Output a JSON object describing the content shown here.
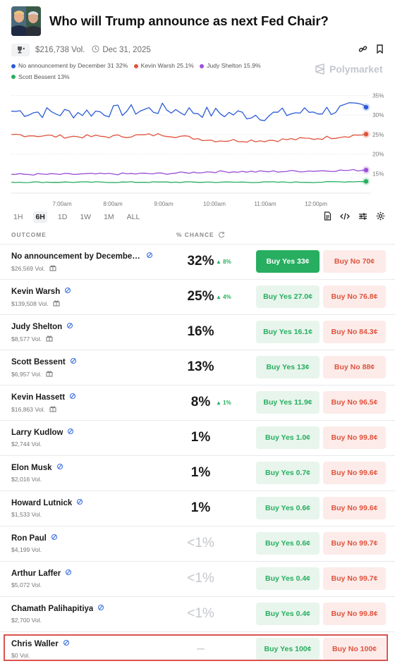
{
  "market": {
    "title": "Who will Trump announce as next Fed Chair?",
    "volume": "$216,738 Vol.",
    "end_date": "Dec 31, 2025",
    "brand": "Polymarket"
  },
  "legend": [
    {
      "label": "No announcement by December 31 32%",
      "color": "#2a5bd7"
    },
    {
      "label": "Kevin Warsh 25.1%",
      "color": "#e0533d"
    },
    {
      "label": "Judy Shelton 15.9%",
      "color": "#9b4fd6"
    },
    {
      "label": "Scott Bessent 13%",
      "color": "#27ae60"
    }
  ],
  "chart_data": {
    "type": "line",
    "x": [
      "6:30am",
      "7:00am",
      "8:00am",
      "9:00am",
      "10:00am",
      "11:00am",
      "12:00pm",
      "12:10pm"
    ],
    "x_ticks": [
      "7:00am",
      "8:00am",
      "9:00am",
      "10:00am",
      "11:00am",
      "12:00pm"
    ],
    "y_ticks": [
      "35%",
      "30%",
      "25%",
      "20%",
      "15%"
    ],
    "ylim": [
      10,
      36
    ],
    "series": [
      {
        "name": "No announcement by December 31",
        "color": "#2a5bd7",
        "values": [
          31,
          30.5,
          31,
          31.5,
          30.5,
          30,
          31,
          32
        ]
      },
      {
        "name": "Kevin Warsh",
        "color": "#e0533d",
        "values": [
          25,
          24.5,
          24.5,
          25,
          23.5,
          23.5,
          24,
          25.1
        ]
      },
      {
        "name": "Judy Shelton",
        "color": "#9b4fd6",
        "values": [
          14.8,
          14.8,
          14.9,
          15,
          15.5,
          15.5,
          15.7,
          15.9
        ]
      },
      {
        "name": "Scott Bessent",
        "color": "#27ae60",
        "values": [
          12.8,
          12.8,
          12.8,
          12.8,
          12.8,
          12.8,
          12.8,
          13
        ]
      }
    ]
  },
  "ranges": [
    "1H",
    "6H",
    "1D",
    "1W",
    "1M",
    "ALL"
  ],
  "active_range": "6H",
  "table": {
    "header_outcome": "OUTCOME",
    "header_chance": "% CHANCE",
    "rows": [
      {
        "name": "No announcement by December ...",
        "vol": "$26,569 Vol.",
        "pct": "32%",
        "chg": "▲ 8%",
        "yes": "Buy Yes 33¢",
        "no": "Buy No 70¢"
      },
      {
        "name": "Kevin Warsh",
        "vol": "$139,508 Vol.",
        "pct": "25%",
        "chg": "▲ 4%",
        "yes": "Buy Yes 27.0¢",
        "no": "Buy No 76.8¢"
      },
      {
        "name": "Judy Shelton",
        "vol": "$8,577 Vol.",
        "pct": "16%",
        "chg": "",
        "yes": "Buy Yes 16.1¢",
        "no": "Buy No 84.3¢"
      },
      {
        "name": "Scott Bessent",
        "vol": "$6,957 Vol.",
        "pct": "13%",
        "chg": "",
        "yes": "Buy Yes 13¢",
        "no": "Buy No 88¢"
      },
      {
        "name": "Kevin Hassett",
        "vol": "$16,863 Vol.",
        "pct": "8%",
        "chg": "▲ 1%",
        "yes": "Buy Yes 11.9¢",
        "no": "Buy No 96.5¢"
      },
      {
        "name": "Larry Kudlow",
        "vol": "$2,744 Vol.",
        "pct": "1%",
        "chg": "",
        "yes": "Buy Yes 1.0¢",
        "no": "Buy No 99.8¢"
      },
      {
        "name": "Elon Musk",
        "vol": "$2,016 Vol.",
        "pct": "1%",
        "chg": "",
        "yes": "Buy Yes 0.7¢",
        "no": "Buy No 99.6¢"
      },
      {
        "name": "Howard Lutnick",
        "vol": "$1,533 Vol.",
        "pct": "1%",
        "chg": "",
        "yes": "Buy Yes 0.6¢",
        "no": "Buy No 99.6¢"
      },
      {
        "name": "Ron Paul",
        "vol": "$4,199 Vol.",
        "pct": "<1%",
        "chg": "",
        "yes": "Buy Yes 0.6¢",
        "no": "Buy No 99.7¢"
      },
      {
        "name": "Arthur Laffer",
        "vol": "$5,072 Vol.",
        "pct": "<1%",
        "chg": "",
        "yes": "Buy Yes 0.4¢",
        "no": "Buy No 99.7¢"
      },
      {
        "name": "Chamath Palihapitiya",
        "vol": "$2,700 Vol.",
        "pct": "<1%",
        "chg": "",
        "yes": "Buy Yes 0.4¢",
        "no": "Buy No 99.8¢"
      },
      {
        "name": "Chris Waller",
        "vol": "$0 Vol.",
        "pct": "–",
        "chg": "",
        "yes": "Buy Yes 100¢",
        "no": "Buy No 100¢"
      }
    ]
  }
}
